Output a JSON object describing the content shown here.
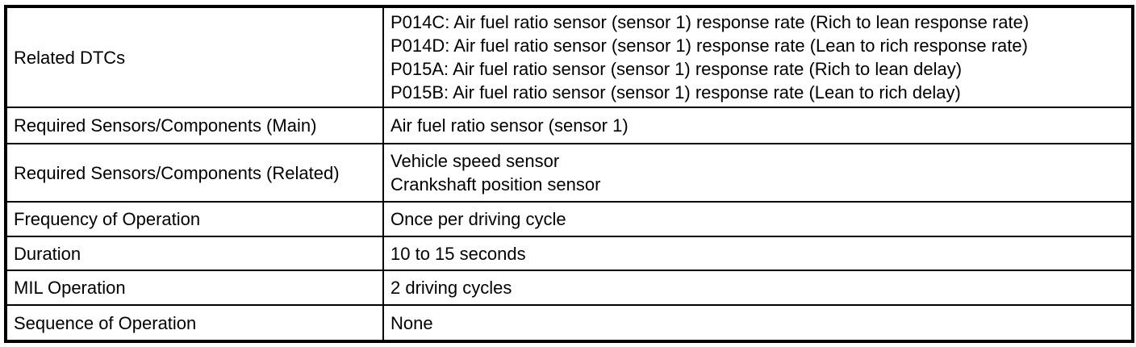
{
  "table": {
    "rows": [
      {
        "label": "Related DTCs",
        "lines": [
          "P014C: Air fuel ratio sensor (sensor 1) response rate (Rich to lean response rate)",
          "P014D: Air fuel ratio sensor (sensor 1) response rate (Lean to rich response rate)",
          "P015A: Air fuel ratio sensor (sensor 1) response rate (Rich to lean delay)",
          "P015B: Air fuel ratio sensor (sensor 1) response rate (Lean to rich delay)"
        ]
      },
      {
        "label": "Required Sensors/Components (Main)",
        "lines": [
          "Air fuel ratio sensor (sensor 1)"
        ]
      },
      {
        "label": "Required Sensors/Components (Related)",
        "lines": [
          "Vehicle speed sensor",
          "Crankshaft position sensor"
        ]
      },
      {
        "label": "Frequency of Operation",
        "lines": [
          "Once per driving cycle"
        ]
      },
      {
        "label": "Duration",
        "lines": [
          "10 to 15 seconds"
        ]
      },
      {
        "label": "MIL Operation",
        "lines": [
          "2 driving cycles"
        ]
      },
      {
        "label": "Sequence of Operation",
        "lines": [
          "None"
        ]
      }
    ]
  }
}
